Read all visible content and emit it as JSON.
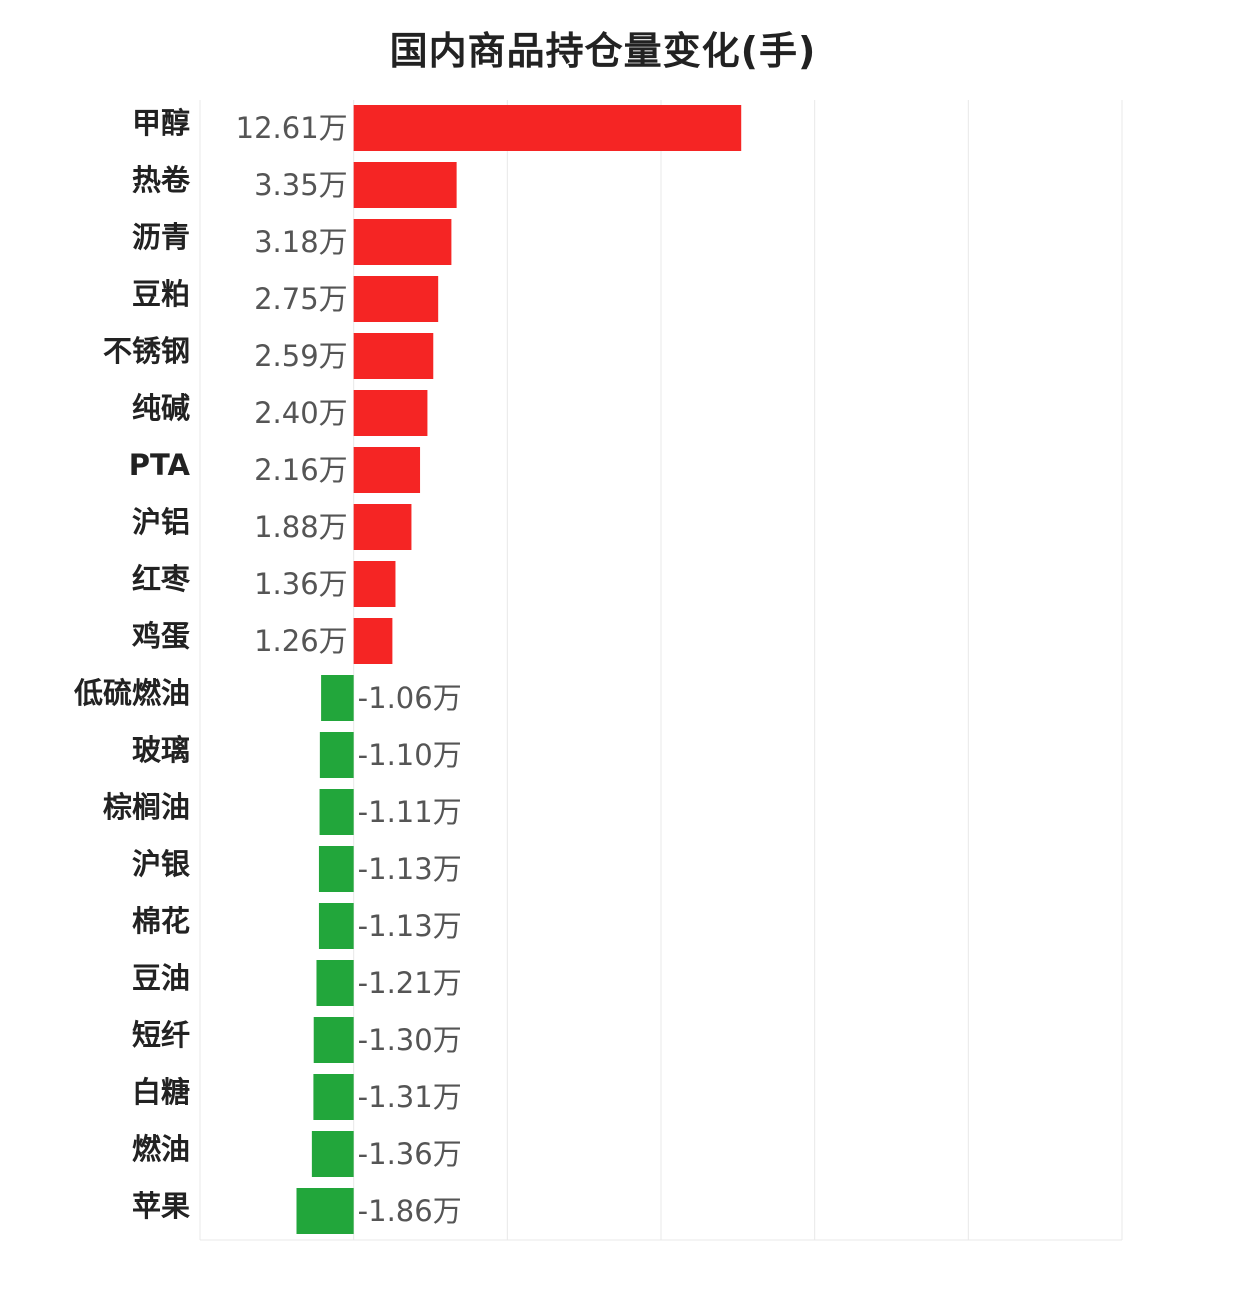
{
  "colors": {
    "positive": "#f52524",
    "negative": "#22a63b",
    "grid": "#e8e8e8",
    "axis": "#cccccc"
  },
  "chart_data": {
    "type": "bar",
    "orientation": "horizontal",
    "title": "国内商品持仓量变化(手)",
    "unit": "万",
    "grid": true,
    "xlim": [
      -5,
      25
    ],
    "categories": [
      "甲醇",
      "热卷",
      "沥青",
      "豆粕",
      "不锈钢",
      "纯碱",
      "PTA",
      "沪铝",
      "红枣",
      "鸡蛋",
      "低硫燃油",
      "玻璃",
      "棕榈油",
      "沪银",
      "棉花",
      "豆油",
      "短纤",
      "白糖",
      "燃油",
      "苹果"
    ],
    "values": [
      12.61,
      3.35,
      3.18,
      2.75,
      2.59,
      2.4,
      2.16,
      1.88,
      1.36,
      1.26,
      -1.06,
      -1.1,
      -1.11,
      -1.13,
      -1.13,
      -1.21,
      -1.3,
      -1.31,
      -1.36,
      -1.86
    ],
    "value_labels": [
      "12.61万",
      "3.35万",
      "3.18万",
      "2.75万",
      "2.59万",
      "2.40万",
      "2.16万",
      "1.88万",
      "1.36万",
      "1.26万",
      "-1.06万",
      "-1.10万",
      "-1.11万",
      "-1.13万",
      "-1.13万",
      "-1.21万",
      "-1.30万",
      "-1.31万",
      "-1.36万",
      "-1.86万"
    ]
  }
}
